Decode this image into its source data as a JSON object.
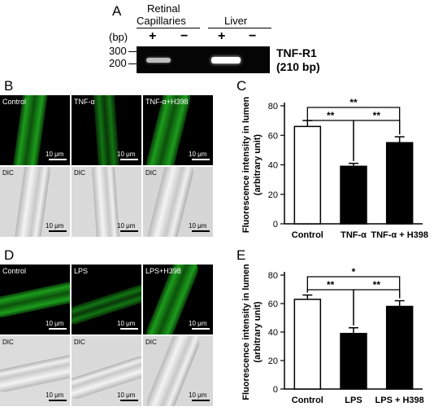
{
  "panel_a": {
    "letter": "A",
    "lane_header_1": "Retinal",
    "lane_header_1b": "Capillaries",
    "lane_header_2": "Liver",
    "bp_label": "(bp)",
    "plus": "+",
    "minus": "−",
    "marker_300": "300",
    "marker_200": "200",
    "gene": "TNF-R1",
    "size": "(210 bp)"
  },
  "panel_b": {
    "letter": "B",
    "labels": [
      "Control",
      "TNF-α",
      "TNF-α+H398"
    ],
    "dic": "DIC",
    "scale": "10 μm"
  },
  "panel_d": {
    "letter": "D",
    "labels": [
      "Control",
      "LPS",
      "LPS+H398"
    ],
    "dic": "DIC",
    "scale": "10 μm"
  },
  "chart_data": [
    {
      "panel": "C",
      "type": "bar",
      "categories": [
        "Control",
        "TNF-α",
        "TNF-α + H398"
      ],
      "values": [
        66,
        39,
        55
      ],
      "errors": [
        4,
        2,
        4
      ],
      "fills": [
        "#ffffff",
        "#000000",
        "#000000"
      ],
      "ylabel": "Fluorescence intensity in lumen (arbitrary unit)",
      "ylabel_line1": "Fluorescence intensity in lumen",
      "ylabel_line2": "(arbitrary unit)",
      "ylim": [
        0,
        80
      ],
      "yticks": [
        0,
        20,
        40,
        60,
        80
      ],
      "significance": [
        {
          "from": 0,
          "to": 1,
          "label": "**",
          "level": 1
        },
        {
          "from": 1,
          "to": 2,
          "label": "**",
          "level": 1
        },
        {
          "from": 0,
          "to": 2,
          "label": "**",
          "level": 2
        }
      ]
    },
    {
      "panel": "E",
      "type": "bar",
      "categories": [
        "Control",
        "LPS",
        "LPS + H398"
      ],
      "values": [
        63,
        39,
        58
      ],
      "errors": [
        3,
        4,
        4
      ],
      "fills": [
        "#ffffff",
        "#000000",
        "#000000"
      ],
      "ylabel": "Fluorescence intensity in lumen (arbitrary unit)",
      "ylabel_line1": "Fluorescence intensity in lumen",
      "ylabel_line2": "(arbitrary unit)",
      "ylim": [
        0,
        80
      ],
      "yticks": [
        0,
        20,
        40,
        60,
        80
      ],
      "significance": [
        {
          "from": 0,
          "to": 1,
          "label": "**",
          "level": 1
        },
        {
          "from": 1,
          "to": 2,
          "label": "**",
          "level": 1
        },
        {
          "from": 0,
          "to": 2,
          "label": "*",
          "level": 2
        }
      ]
    }
  ]
}
